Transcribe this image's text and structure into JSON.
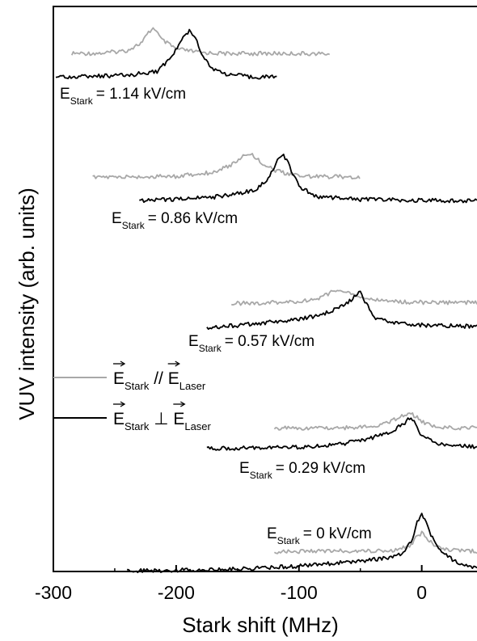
{
  "chart_data": {
    "type": "line",
    "xlabel": "Stark shift (MHz)",
    "ylabel": "VUV intensity (arb. units)",
    "xlim": [
      -300,
      45
    ],
    "x_ticks": [
      -300,
      -200,
      -100,
      0
    ],
    "y_ticks_shown": false,
    "grid": false,
    "legend": {
      "placement": "center-left",
      "entries": [
        {
          "series": "parallel",
          "color": "#a8a8a8",
          "main": "E",
          "sub": "Stark",
          "sep": " // ",
          "main2": "E",
          "sub2": "Laser"
        },
        {
          "series": "perpendicular",
          "color": "#000000",
          "main": "E",
          "sub": "Stark",
          "sep": " ⊥ ",
          "main2": "E",
          "sub2": "Laser"
        }
      ]
    },
    "panels": [
      {
        "field_main": "E",
        "field_sub": "Stark",
        "field_value": "= 1.14 kV/cm",
        "parallel": {
          "x": [
            -285,
            -260,
            -240,
            -228,
            -222,
            -218,
            -212,
            -200,
            -180,
            -160,
            -140,
            -110,
            -75
          ],
          "y": [
            0.1,
            0.11,
            0.2,
            0.45,
            0.8,
            0.95,
            0.55,
            0.25,
            0.13,
            0.1,
            0.1,
            0.1,
            0.09
          ]
        },
        "perpendicular": {
          "x": [
            -298,
            -270,
            -240,
            -215,
            -203,
            -195,
            -189,
            -185,
            -180,
            -172,
            -160,
            -140,
            -118
          ],
          "y": [
            0.0,
            0.01,
            0.03,
            0.12,
            0.45,
            0.8,
            1.0,
            0.88,
            0.55,
            0.2,
            0.06,
            0.0,
            0.0
          ]
        }
      },
      {
        "field_main": "E",
        "field_sub": "Stark",
        "field_value": "= 0.86 kV/cm",
        "parallel": {
          "x": [
            -268,
            -240,
            -200,
            -170,
            -155,
            -145,
            -140,
            -132,
            -120,
            -110,
            -100,
            -80,
            -50
          ],
          "y": [
            0.1,
            0.11,
            0.13,
            0.24,
            0.45,
            0.7,
            0.78,
            0.55,
            0.3,
            0.2,
            0.15,
            0.12,
            0.12
          ]
        },
        "perpendicular": {
          "x": [
            -230,
            -200,
            -170,
            -150,
            -135,
            -125,
            -118,
            -113,
            -108,
            -100,
            -85,
            -50,
            0,
            45
          ],
          "y": [
            0.0,
            0.02,
            0.07,
            0.15,
            0.22,
            0.48,
            0.82,
            1.0,
            0.75,
            0.3,
            0.08,
            0.02,
            0.0,
            0.0
          ]
        }
      },
      {
        "field_main": "E",
        "field_sub": "Stark",
        "field_value": "= 0.57 kV/cm",
        "parallel": {
          "x": [
            -155,
            -130,
            -100,
            -85,
            -75,
            -70,
            -65,
            -55,
            -45,
            -30,
            -10,
            20,
            45
          ],
          "y": [
            0.1,
            0.11,
            0.17,
            0.3,
            0.55,
            0.7,
            0.65,
            0.45,
            0.3,
            0.2,
            0.15,
            0.13,
            0.13
          ]
        },
        "perpendicular": {
          "x": [
            -175,
            -150,
            -120,
            -100,
            -80,
            -62,
            -55,
            -50,
            -45,
            -38,
            -25,
            0,
            45
          ],
          "y": [
            0.0,
            0.05,
            0.15,
            0.2,
            0.35,
            0.6,
            0.8,
            0.95,
            0.6,
            0.25,
            0.12,
            0.06,
            0.02
          ]
        }
      },
      {
        "field_main": "E",
        "field_sub": "Stark",
        "field_value": "= 0.29 kV/cm",
        "parallel": {
          "x": [
            -120,
            -90,
            -60,
            -40,
            -25,
            -15,
            -10,
            -5,
            0,
            10,
            20,
            45
          ],
          "y": [
            0.1,
            0.11,
            0.12,
            0.18,
            0.35,
            0.6,
            0.65,
            0.55,
            0.35,
            0.15,
            0.12,
            0.11
          ]
        },
        "perpendicular": {
          "x": [
            -175,
            -140,
            -100,
            -70,
            -45,
            -25,
            -15,
            -10,
            -5,
            0,
            10,
            25,
            45
          ],
          "y": [
            0.0,
            0.02,
            0.05,
            0.12,
            0.3,
            0.55,
            0.8,
            1.0,
            0.8,
            0.4,
            0.2,
            0.1,
            0.05
          ]
        }
      },
      {
        "field_main": "E",
        "field_sub": "Stark",
        "field_value": "= 0 kV/cm",
        "parallel": {
          "x": [
            -120,
            -80,
            -40,
            -20,
            -10,
            -3,
            0,
            3,
            10,
            20,
            30,
            45
          ],
          "y": [
            0.3,
            0.31,
            0.33,
            0.35,
            0.45,
            0.75,
            0.82,
            0.75,
            0.45,
            0.35,
            0.32,
            0.31
          ]
        },
        "perpendicular": {
          "x": [
            -240,
            -200,
            -150,
            -100,
            -60,
            -30,
            -15,
            -8,
            -3,
            0,
            3,
            8,
            15,
            25,
            35,
            45
          ],
          "y": [
            0.0,
            0.01,
            0.03,
            0.08,
            0.15,
            0.22,
            0.3,
            0.55,
            0.9,
            1.0,
            0.9,
            0.6,
            0.35,
            0.2,
            0.1,
            0.05
          ]
        }
      }
    ]
  }
}
